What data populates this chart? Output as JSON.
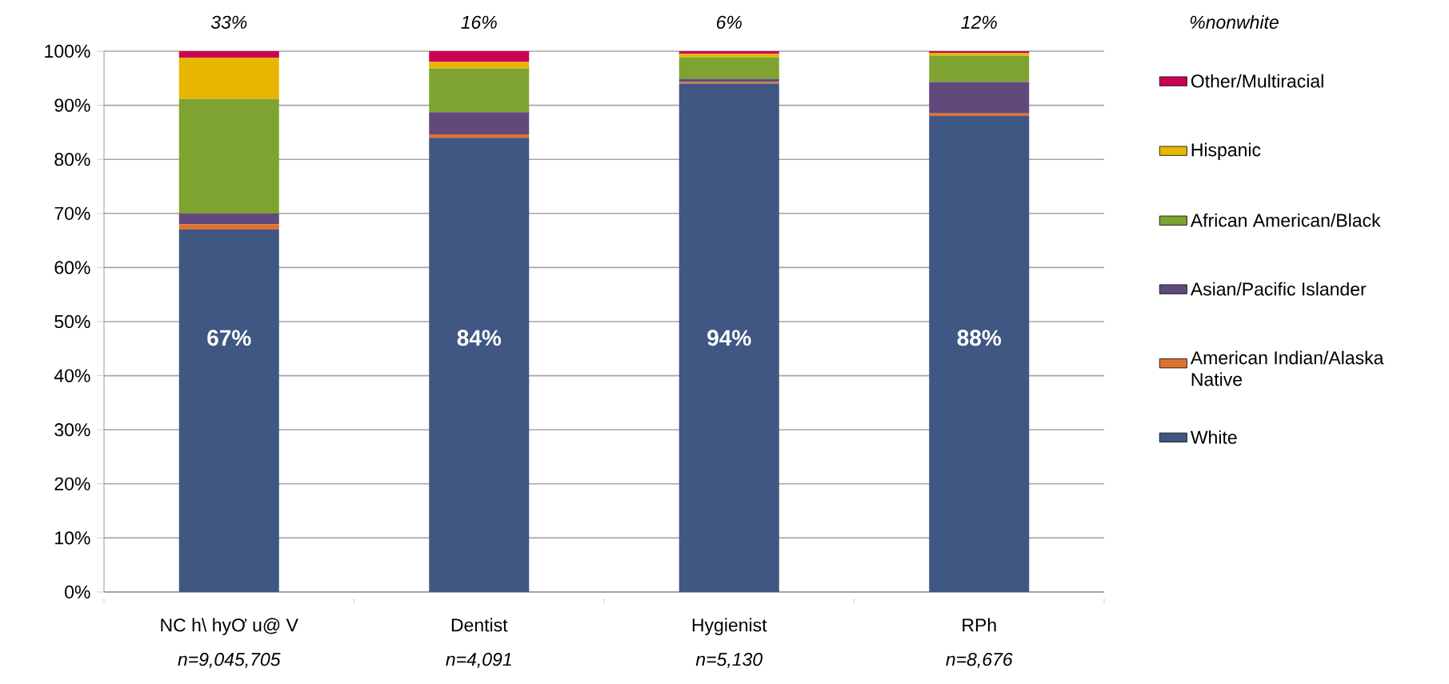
{
  "chart_data": {
    "type": "bar",
    "stacked": true,
    "categories": [
      "NC h\\ hyƠ u@ V",
      "Dentist",
      "Hygienist",
      "RPh"
    ],
    "series": [
      {
        "name": "White",
        "color": "#3f5782",
        "values": [
          67,
          84,
          94,
          88
        ],
        "value_labels": [
          "67%",
          "84%",
          "94%",
          "88%"
        ]
      },
      {
        "name": "American Indian/Alaska Native",
        "color": "#dd7331",
        "values": [
          1,
          0.6,
          0.3,
          0.5
        ]
      },
      {
        "name": "Asian/Pacific Islander",
        "color": "#604a7b",
        "values": [
          2,
          4.1,
          0.6,
          5.8
        ]
      },
      {
        "name": "African American/Black",
        "color": "#7ea331",
        "values": [
          21.2,
          8.1,
          4.0,
          4.9
        ]
      },
      {
        "name": "Hispanic",
        "color": "#e8b600",
        "values": [
          7.6,
          1.2,
          0.6,
          0.5
        ]
      },
      {
        "name": "Other/Multiracial",
        "color": "#cc0055",
        "values": [
          1.2,
          2.0,
          0.5,
          0.3
        ]
      }
    ],
    "ylim": [
      0,
      100
    ],
    "yticks": [
      {
        "value": 0,
        "label": "0%"
      },
      {
        "value": 10,
        "label": "10%"
      },
      {
        "value": 20,
        "label": "20%"
      },
      {
        "value": 30,
        "label": "30%"
      },
      {
        "value": 40,
        "label": "40%"
      },
      {
        "value": 50,
        "label": "50%"
      },
      {
        "value": 60,
        "label": "60%"
      },
      {
        "value": 70,
        "label": "70%"
      },
      {
        "value": 80,
        "label": "80%"
      },
      {
        "value": 90,
        "label": "90%"
      },
      {
        "value": 100,
        "label": "100%"
      }
    ],
    "grid": "y",
    "legend": "right",
    "annotations": [
      "33%",
      "16%",
      "6%",
      "12%",
      "%nonwhite",
      "n=9,045,705",
      "n=4,091",
      "n=5,130",
      "n=8,676"
    ]
  }
}
